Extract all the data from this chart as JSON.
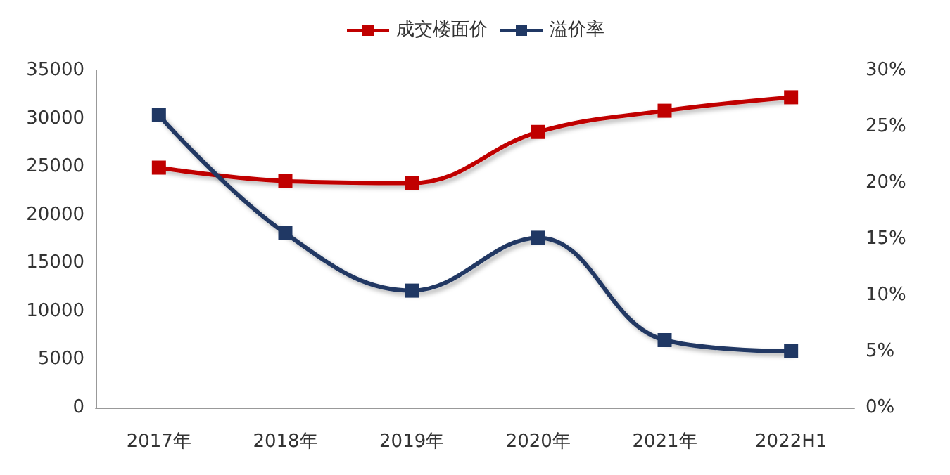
{
  "chart_data": {
    "type": "line",
    "categories": [
      "2017年",
      "2018年",
      "2019年",
      "2020年",
      "2021年",
      "2022H1"
    ],
    "series": [
      {
        "name": "成交楼面价",
        "color": "#c00000",
        "values": [
          24900,
          23500,
          23300,
          28600,
          30800,
          32200
        ]
      },
      {
        "name": "溢价率",
        "color": "#203864",
        "values": [
          26.0,
          15.5,
          10.4,
          15.1,
          6.0,
          5.0
        ],
        "axis": "y2"
      }
    ],
    "ylim": [
      0,
      35000
    ],
    "yticks": [
      0,
      5000,
      10000,
      15000,
      20000,
      25000,
      30000,
      35000
    ],
    "y2lim": [
      0,
      30
    ],
    "y2ticks": [
      {
        "value": 0,
        "label": "0%"
      },
      {
        "value": 5,
        "label": "5%"
      },
      {
        "value": 10,
        "label": "10%"
      },
      {
        "value": 15,
        "label": "15%"
      },
      {
        "value": 20,
        "label": "20%"
      },
      {
        "value": 25,
        "label": "25%"
      },
      {
        "value": 30,
        "label": "30%"
      }
    ],
    "grid": false,
    "legend": "top",
    "marker": "square",
    "line_style": "solid"
  }
}
